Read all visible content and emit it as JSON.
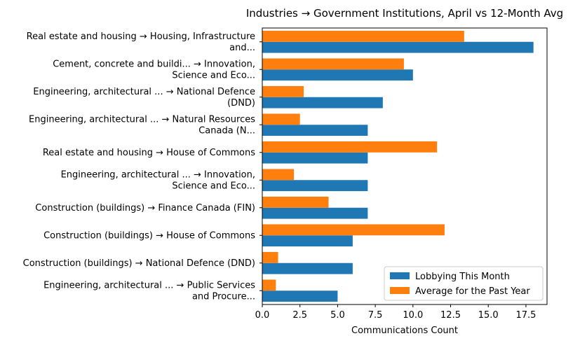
{
  "chart_data": {
    "type": "bar",
    "orientation": "horizontal",
    "title": "Industries → Government Institutions, April vs 12-Month Avg",
    "xlabel": "Communications Count",
    "ylabel": "",
    "xlim": [
      0,
      18.9
    ],
    "xticks": [
      "0.0",
      "2.5",
      "5.0",
      "7.5",
      "10.0",
      "12.5",
      "15.0",
      "17.5"
    ],
    "categories": [
      [
        "Real estate and housing → Housing, Infrastructure",
        "and..."
      ],
      [
        "Cement, concrete and buildi... → Innovation,",
        "Science and Eco..."
      ],
      [
        "Engineering, architectural ... → National Defence",
        "(DND)"
      ],
      [
        "Engineering, architectural ... → Natural Resources",
        "Canada (N..."
      ],
      [
        "Real estate and housing → House of Commons"
      ],
      [
        "Engineering, architectural ... → Innovation,",
        "Science and Eco..."
      ],
      [
        "Construction (buildings) → Finance Canada (FIN)"
      ],
      [
        "Construction (buildings) → House of Commons"
      ],
      [
        "Construction (buildings) → National Defence (DND)"
      ],
      [
        "Engineering, architectural ... → Public Services",
        "and Procure..."
      ]
    ],
    "series": [
      {
        "name": "Lobbying This Month",
        "color": "#1f77b4",
        "values": [
          18,
          10,
          8,
          7,
          7,
          7,
          7,
          6,
          6,
          5
        ]
      },
      {
        "name": "Average for the Past Year",
        "color": "#ff7f0e",
        "values": [
          13.4,
          9.4,
          2.75,
          2.5,
          11.6,
          2.1,
          4.4,
          12.1,
          1.05,
          0.9
        ]
      }
    ],
    "legend_position": "lower-right",
    "grid": false
  }
}
